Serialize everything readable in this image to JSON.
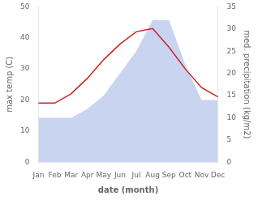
{
  "chart_data": {
    "type": "line",
    "xlabel": "date (month)",
    "ylabel": "max temp (C)",
    "y2label": "med. precipitation (kg/m2)",
    "categories": [
      "Jan",
      "Feb",
      "Mar",
      "Apr",
      "May",
      "Jun",
      "Jul",
      "Aug",
      "Sep",
      "Oct",
      "Nov",
      "Dec"
    ],
    "series": [
      {
        "type": "area",
        "color": "#c8d4f0",
        "axis": "y2",
        "values": [
          10,
          10,
          10,
          12,
          15,
          20,
          25,
          32,
          32,
          22,
          14,
          14
        ]
      },
      {
        "type": "line",
        "color": "#cc2222",
        "values": [
          19,
          19,
          22,
          27,
          33,
          38,
          42,
          43,
          37,
          30,
          24,
          21
        ]
      }
    ],
    "ylim": [
      0,
      50
    ],
    "yticks": [
      0,
      10,
      20,
      30,
      40,
      50
    ],
    "y2lim": [
      0,
      35
    ],
    "y2ticks": [
      0,
      5,
      10,
      15,
      20,
      25,
      30,
      35
    ],
    "grid": false
  }
}
